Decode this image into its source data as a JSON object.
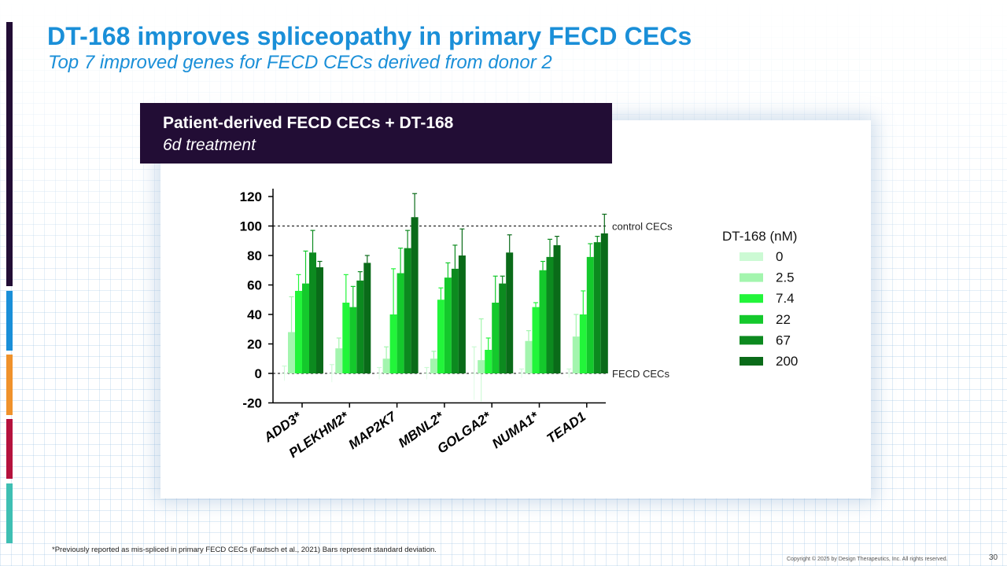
{
  "slide": {
    "title": "DT-168 improves spliceopathy in primary FECD CECs",
    "subtitle": "Top 7 improved genes for FECD CECs derived from donor 2",
    "footnote": "*Previously reported as mis-spliced in primary FECD CECs (Fautsch et al., 2021) Bars represent standard deviation.",
    "copyright": "Copyright © 2025 by Design Therapeutics, Inc. All rights reserved.",
    "page_number": "30"
  },
  "sidebar_colors": [
    "#220d35",
    "#1a8fd8",
    "#f0922b",
    "#b5123d",
    "#3ebfb3"
  ],
  "banner": {
    "line1": "Patient-derived FECD CECs + DT-168",
    "line2": "6d treatment"
  },
  "chart_data": {
    "type": "bar",
    "title": "",
    "xlabel": "",
    "ylabel": "",
    "ylim": [
      -20,
      130
    ],
    "yticks": [
      120,
      100,
      80,
      60,
      40,
      20,
      0,
      -20
    ],
    "categories": [
      "ADD3*",
      "PLEKHM2*",
      "MAP2K7",
      "MBNL2*",
      "GOLGA2*",
      "NUMA1*",
      "TEAD1"
    ],
    "legend_title": "DT-168 (nM)",
    "legend_position": "right",
    "reference_lines": [
      {
        "value": 100,
        "label": "control CECs",
        "style": "dashed"
      },
      {
        "value": 0,
        "label": "FECD CECs",
        "style": "dashed"
      }
    ],
    "series": [
      {
        "name": "0",
        "color": "#ccfad4",
        "values": [
          0,
          0,
          0,
          0,
          0,
          0,
          0
        ],
        "errors": [
          5,
          6,
          4,
          4,
          18,
          3,
          3
        ]
      },
      {
        "name": "2.5",
        "color": "#a3f5ae",
        "values": [
          28,
          17,
          10,
          10,
          9,
          22,
          25
        ],
        "errors": [
          24,
          7,
          8,
          5,
          28,
          7,
          15
        ]
      },
      {
        "name": "7.4",
        "color": "#22f53a",
        "values": [
          56,
          48,
          40,
          50,
          16,
          45,
          40
        ],
        "errors": [
          11,
          19,
          31,
          8,
          8,
          3,
          16
        ]
      },
      {
        "name": "22",
        "color": "#14c92c",
        "values": [
          61,
          45,
          68,
          65,
          48,
          70,
          79
        ],
        "errors": [
          22,
          14,
          17,
          10,
          18,
          6,
          9
        ]
      },
      {
        "name": "67",
        "color": "#0c8a1f",
        "values": [
          82,
          63,
          85,
          71,
          61,
          79,
          89
        ],
        "errors": [
          15,
          6,
          12,
          16,
          5,
          12,
          4
        ]
      },
      {
        "name": "200",
        "color": "#0a6b19",
        "values": [
          72,
          75,
          106,
          80,
          82,
          87,
          95
        ],
        "errors": [
          4,
          5,
          16,
          18,
          12,
          6,
          13
        ]
      }
    ]
  }
}
